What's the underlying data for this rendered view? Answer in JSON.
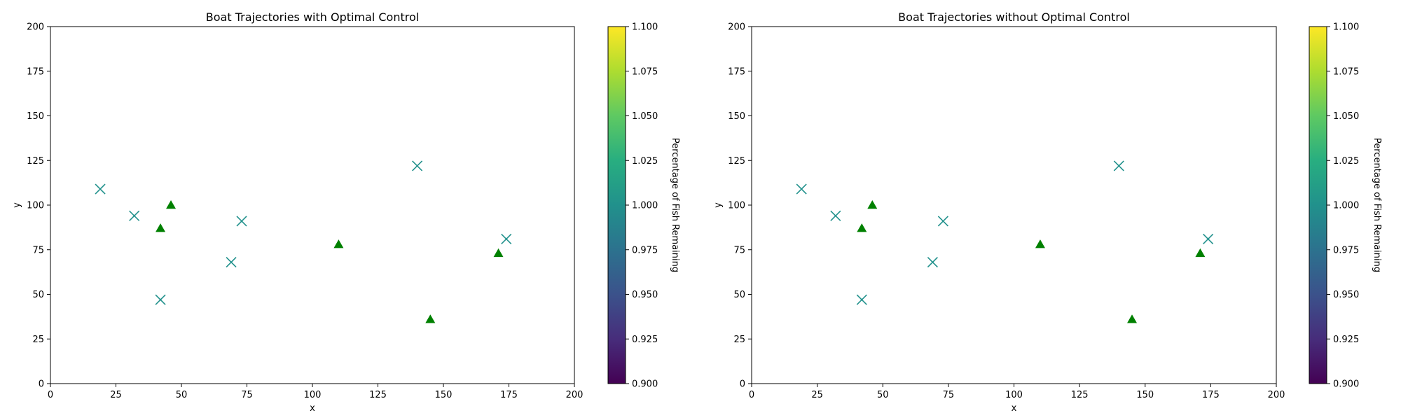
{
  "chart_data": [
    {
      "type": "scatter",
      "title": "Boat Trajectories with Optimal Control",
      "xlabel": "x",
      "ylabel": "y",
      "xlim": [
        0,
        200
      ],
      "ylim": [
        0,
        200
      ],
      "xticks": [
        0,
        25,
        50,
        75,
        100,
        125,
        150,
        175,
        200
      ],
      "yticks": [
        0,
        25,
        50,
        75,
        100,
        125,
        150,
        175,
        200
      ],
      "grid": false,
      "series": [
        {
          "marker": "x",
          "color": "#21918c",
          "points": [
            [
              19,
              109
            ],
            [
              32,
              94
            ],
            [
              42,
              47
            ],
            [
              69,
              68
            ],
            [
              73,
              91
            ],
            [
              140,
              122
            ],
            [
              174,
              81
            ]
          ]
        },
        {
          "marker": "triangle",
          "color": "#008000",
          "points": [
            [
              42,
              87
            ],
            [
              46,
              100
            ],
            [
              110,
              78
            ],
            [
              145,
              36
            ],
            [
              171,
              73
            ]
          ]
        }
      ],
      "colorbar": {
        "label": "Percentage of Fish Remaining",
        "min": 0.9,
        "max": 1.1,
        "ticks": [
          "0.900",
          "0.925",
          "0.950",
          "0.975",
          "1.000",
          "1.025",
          "1.050",
          "1.075",
          "1.100"
        ],
        "colormap": "viridis"
      }
    },
    {
      "type": "scatter",
      "title": "Boat Trajectories without Optimal Control",
      "xlabel": "x",
      "ylabel": "y",
      "xlim": [
        0,
        200
      ],
      "ylim": [
        0,
        200
      ],
      "xticks": [
        0,
        25,
        50,
        75,
        100,
        125,
        150,
        175,
        200
      ],
      "yticks": [
        0,
        25,
        50,
        75,
        100,
        125,
        150,
        175,
        200
      ],
      "grid": false,
      "series": [
        {
          "marker": "x",
          "color": "#21918c",
          "points": [
            [
              19,
              109
            ],
            [
              32,
              94
            ],
            [
              42,
              47
            ],
            [
              69,
              68
            ],
            [
              73,
              91
            ],
            [
              140,
              122
            ],
            [
              174,
              81
            ]
          ]
        },
        {
          "marker": "triangle",
          "color": "#008000",
          "points": [
            [
              42,
              87
            ],
            [
              46,
              100
            ],
            [
              110,
              78
            ],
            [
              145,
              36
            ],
            [
              171,
              73
            ]
          ]
        }
      ],
      "colorbar": {
        "label": "Percentage of Fish Remaining",
        "min": 0.9,
        "max": 1.1,
        "ticks": [
          "0.900",
          "0.925",
          "0.950",
          "0.975",
          "1.000",
          "1.025",
          "1.050",
          "1.075",
          "1.100"
        ],
        "colormap": "viridis"
      }
    }
  ]
}
